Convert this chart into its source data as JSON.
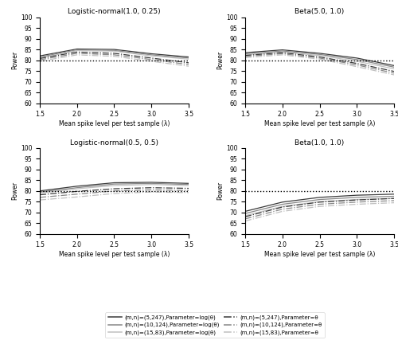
{
  "lambda": [
    1.5,
    2.0,
    2.5,
    3.0,
    3.5
  ],
  "dotted_line": 80,
  "ylim": [
    60,
    100
  ],
  "yticks": [
    60,
    65,
    70,
    75,
    80,
    85,
    90,
    95,
    100
  ],
  "xlim": [
    1.5,
    3.5
  ],
  "xticks": [
    1.5,
    2.0,
    2.5,
    3.0,
    3.5
  ],
  "xlabel": "Mean spike level per test sample (λ)",
  "ylabel": "Power",
  "subplot_titles": [
    "Logistic-normal(1.0, 0.25)",
    "Beta(5.0, 1.0)",
    "Logistic-normal(0.5, 0.5)",
    "Beta(1.0, 1.0)"
  ],
  "colors": {
    "dark": "#3a3a3a",
    "medium": "#888888",
    "light": "#c0c0c0"
  },
  "panels": {
    "logistic_normal_1_0_25": {
      "log_theta": {
        "m5n247": [
          82.0,
          85.2,
          85.0,
          83.0,
          81.5
        ],
        "m10n124": [
          81.5,
          84.8,
          84.5,
          82.5,
          81.0
        ],
        "m15n83": [
          81.0,
          84.5,
          84.2,
          82.0,
          80.5
        ]
      },
      "theta": {
        "m5n247": [
          80.8,
          83.8,
          83.2,
          81.0,
          78.8
        ],
        "m10n124": [
          80.2,
          83.2,
          82.5,
          80.3,
          78.0
        ],
        "m15n83": [
          79.5,
          82.5,
          81.8,
          79.5,
          77.2
        ]
      }
    },
    "beta_5_1": {
      "log_theta": {
        "m5n247": [
          83.5,
          84.8,
          83.2,
          81.0,
          77.5
        ],
        "m10n124": [
          83.0,
          84.3,
          82.7,
          80.3,
          76.8
        ],
        "m15n83": [
          82.5,
          83.8,
          82.2,
          79.5,
          76.0
        ]
      },
      "theta": {
        "m5n247": [
          82.2,
          83.5,
          81.5,
          78.5,
          74.8
        ],
        "m10n124": [
          81.8,
          83.0,
          81.0,
          77.8,
          74.0
        ],
        "m15n83": [
          81.2,
          82.5,
          80.5,
          77.0,
          73.2
        ]
      }
    },
    "logistic_normal_0_5_0_5": {
      "log_theta": {
        "m5n247": [
          80.0,
          82.2,
          83.8,
          84.0,
          83.5
        ],
        "m10n124": [
          79.5,
          81.5,
          83.2,
          83.5,
          83.0
        ],
        "m15n83": [
          79.0,
          81.0,
          82.5,
          83.0,
          82.5
        ]
      },
      "theta": {
        "m5n247": [
          78.2,
          79.8,
          81.0,
          81.5,
          81.2
        ],
        "m10n124": [
          77.0,
          78.5,
          80.0,
          80.5,
          80.2
        ],
        "m15n83": [
          75.8,
          77.2,
          78.8,
          79.5,
          79.2
        ]
      }
    },
    "beta_1_1": {
      "log_theta": {
        "m5n247": [
          70.5,
          74.8,
          77.0,
          78.0,
          78.5
        ],
        "m10n124": [
          69.5,
          73.8,
          76.0,
          77.0,
          77.5
        ],
        "m15n83": [
          68.5,
          72.8,
          75.0,
          76.0,
          76.5
        ]
      },
      "theta": {
        "m5n247": [
          68.0,
          72.5,
          74.8,
          75.8,
          76.5
        ],
        "m10n124": [
          67.0,
          71.5,
          73.8,
          74.8,
          75.5
        ],
        "m15n83": [
          66.0,
          70.5,
          72.8,
          73.8,
          74.5
        ]
      }
    }
  },
  "legend_entries": [
    {
      "label": "(m,n)=(5,247),Parameter=log(θ)",
      "color": "#3a3a3a",
      "ls": "solid"
    },
    {
      "label": "(m,n)=(10,124),Parameter=log(θ)",
      "color": "#888888",
      "ls": "solid"
    },
    {
      "label": "(m,n)=(15,83),Parameter=log(θ)",
      "color": "#c0c0c0",
      "ls": "solid"
    },
    {
      "label": "(m,n)=(5,247),Parameter=θ",
      "color": "#3a3a3a",
      "ls": "dashdot"
    },
    {
      "label": "(m,n)=(10,124),Parameter=θ",
      "color": "#888888",
      "ls": "dashdot"
    },
    {
      "label": "(m,n)=(15,83),Parameter=θ",
      "color": "#c0c0c0",
      "ls": "dashdot"
    }
  ]
}
